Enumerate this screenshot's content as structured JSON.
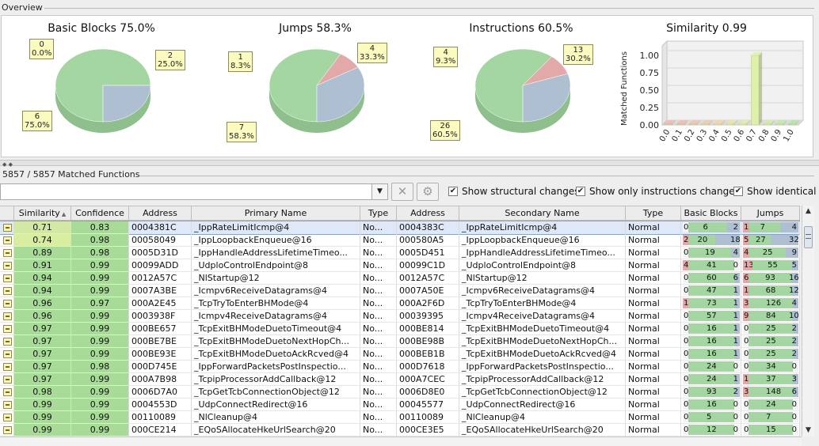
{
  "overview": {
    "title": "Overview",
    "pies": [
      {
        "title": "Basic Blocks 75.0%",
        "slices": [
          {
            "count": "6",
            "pct": "75.0%",
            "value": 75.0,
            "color": "#a3d6a0"
          },
          {
            "count": "0",
            "pct": "0.0%",
            "value": 0.0,
            "color": "#e3a8a8"
          },
          {
            "count": "2",
            "pct": "25.0%",
            "value": 25.0,
            "color": "#aebfd2"
          }
        ]
      },
      {
        "title": "Jumps 58.3%",
        "slices": [
          {
            "count": "7",
            "pct": "58.3%",
            "value": 58.3,
            "color": "#a3d6a0"
          },
          {
            "count": "1",
            "pct": "8.3%",
            "value": 8.3,
            "color": "#e3a8a8"
          },
          {
            "count": "4",
            "pct": "33.3%",
            "value": 33.3,
            "color": "#aebfd2"
          }
        ]
      },
      {
        "title": "Instructions 60.5%",
        "slices": [
          {
            "count": "26",
            "pct": "60.5%",
            "value": 60.5,
            "color": "#a3d6a0"
          },
          {
            "count": "4",
            "pct": "9.3%",
            "value": 9.3,
            "color": "#e3a8a8"
          },
          {
            "count": "13",
            "pct": "30.2%",
            "value": 30.2,
            "color": "#aebfd2"
          }
        ]
      }
    ]
  },
  "chart_data": {
    "type": "bar",
    "title": "Similarity 0.99",
    "ylabel": "Matched Functions",
    "xlabel": "",
    "categories": [
      "0.0",
      "0.1",
      "0.2",
      "0.3",
      "0.4",
      "0.5",
      "0.6",
      "0.7",
      "0.8",
      "0.9",
      "1.0"
    ],
    "values": [
      0,
      0,
      0,
      0,
      0,
      0,
      0,
      1.0,
      0,
      0,
      0
    ],
    "yticks": [
      "0.00",
      "0.25",
      "0.50",
      "0.75",
      "1.00"
    ],
    "ylim": [
      0,
      1.0
    ],
    "grid": true,
    "legend": "none",
    "colors": [
      "#f2b8b8",
      "#f2b8b8",
      "#f2c2b0",
      "#f2ccaa",
      "#f0d8a8",
      "#ece4a8",
      "#e6eca8",
      "#dff0a8",
      "#cfeea8",
      "#bfeaa8",
      "#b0e6a8"
    ]
  },
  "matched": {
    "label": "5857 / 5857 Matched Functions",
    "filter_value": "",
    "dropdown_icon": "dropdown-arrow-icon",
    "clear_icon": "clear-x-icon",
    "settings_icon": "gear-icon",
    "checks": [
      {
        "label": "Show structural changes",
        "checked": true
      },
      {
        "label": "Show only instructions changed",
        "checked": true
      },
      {
        "label": "Show identical",
        "checked": true
      }
    ]
  },
  "table": {
    "columns": [
      "",
      "Similarity",
      "Confidence",
      "Address",
      "Primary Name",
      "Type",
      "Address",
      "Secondary Name",
      "Type",
      "Basic Blocks",
      "Jumps"
    ],
    "sort_indicator": "▲",
    "rows": [
      {
        "sim": "0.71",
        "conf": "0.83",
        "addr1": "0004381C",
        "name1": "_IppRateLimitIcmp@4",
        "type1": "No...",
        "addr2": "0004383C",
        "name2": "_IppRateLimitIcmp@4",
        "type2": "Normal",
        "bb": [
          0,
          6,
          2
        ],
        "jm": [
          1,
          7,
          4
        ],
        "selected": true
      },
      {
        "sim": "0.74",
        "conf": "0.98",
        "addr1": "00058049",
        "name1": "_IppLoopbackEnqueue@16",
        "type1": "No...",
        "addr2": "000580A5",
        "name2": "_IppLoopbackEnqueue@16",
        "type2": "Normal",
        "bb": [
          2,
          20,
          18
        ],
        "jm": [
          5,
          27,
          32
        ]
      },
      {
        "sim": "0.89",
        "conf": "0.98",
        "addr1": "0005D31D",
        "name1": "_IppHandleAddressLifetimeTimeo...",
        "type1": "No...",
        "addr2": "0005D451",
        "name2": "_IppHandleAddressLifetimeTimeo...",
        "type2": "Normal",
        "bb": [
          0,
          19,
          4
        ],
        "jm": [
          4,
          25,
          9
        ]
      },
      {
        "sim": "0.91",
        "conf": "0.99",
        "addr1": "00099ADD",
        "name1": "_UdploControlEndpoint@8",
        "type1": "No...",
        "addr2": "00099C1D",
        "name2": "_UdploControlEndpoint@8",
        "type2": "Normal",
        "bb": [
          4,
          41,
          0
        ],
        "jm": [
          13,
          55,
          5
        ]
      },
      {
        "sim": "0.94",
        "conf": "0.99",
        "addr1": "0012A57C",
        "name1": "_NlStartup@12",
        "type1": "No...",
        "addr2": "0012A57C",
        "name2": "_NlStartup@12",
        "type2": "Normal",
        "bb": [
          0,
          60,
          6
        ],
        "jm": [
          6,
          93,
          16
        ]
      },
      {
        "sim": "0.94",
        "conf": "0.99",
        "addr1": "0007A3BE",
        "name1": "_Icmpv6ReceiveDatagrams@4",
        "type1": "No...",
        "addr2": "0007A50E",
        "name2": "_Icmpv6ReceiveDatagrams@4",
        "type2": "Normal",
        "bb": [
          0,
          47,
          1
        ],
        "jm": [
          11,
          68,
          12
        ]
      },
      {
        "sim": "0.96",
        "conf": "0.97",
        "addr1": "000A2E45",
        "name1": "_TcpTryToEnterBHMode@4",
        "type1": "No...",
        "addr2": "000A2F6D",
        "name2": "_TcpTryToEnterBHMode@4",
        "type2": "Normal",
        "bb": [
          1,
          73,
          1
        ],
        "jm": [
          3,
          126,
          4
        ]
      },
      {
        "sim": "0.96",
        "conf": "0.99",
        "addr1": "0003938F",
        "name1": "_Icmpv4ReceiveDatagrams@4",
        "type1": "No...",
        "addr2": "00039395",
        "name2": "_Icmpv4ReceiveDatagrams@4",
        "type2": "Normal",
        "bb": [
          0,
          57,
          1
        ],
        "jm": [
          9,
          84,
          10
        ]
      },
      {
        "sim": "0.97",
        "conf": "0.99",
        "addr1": "000BE657",
        "name1": "_TcpExitBHModeDuetoTimeout@4",
        "type1": "No...",
        "addr2": "000BE814",
        "name2": "_TcpExitBHModeDuetoTimeout@4",
        "type2": "Normal",
        "bb": [
          0,
          16,
          1
        ],
        "jm": [
          0,
          25,
          2
        ]
      },
      {
        "sim": "0.97",
        "conf": "0.99",
        "addr1": "000BE7BE",
        "name1": "_TcpExitBHModeDuetoNextHopCh...",
        "type1": "No...",
        "addr2": "000BE98B",
        "name2": "_TcpExitBHModeDuetoNextHopCh...",
        "type2": "Normal",
        "bb": [
          0,
          16,
          1
        ],
        "jm": [
          0,
          25,
          2
        ]
      },
      {
        "sim": "0.97",
        "conf": "0.99",
        "addr1": "000BE93E",
        "name1": "_TcpExitBHModeDuetoAckRcved@4",
        "type1": "No...",
        "addr2": "000BEB1B",
        "name2": "_TcpExitBHModeDuetoAckRcved@4",
        "type2": "Normal",
        "bb": [
          0,
          16,
          1
        ],
        "jm": [
          0,
          25,
          2
        ]
      },
      {
        "sim": "0.97",
        "conf": "0.98",
        "addr1": "000D745E",
        "name1": "_IppForwardPacketsPostInspectio...",
        "type1": "No...",
        "addr2": "000D7618",
        "name2": "_IppForwardPacketsPostInspectio...",
        "type2": "Normal",
        "bb": [
          0,
          24,
          0
        ],
        "jm": [
          0,
          34,
          0
        ]
      },
      {
        "sim": "0.97",
        "conf": "0.99",
        "addr1": "000A7B98",
        "name1": "_TcpipProcessorAddCallback@12",
        "type1": "No...",
        "addr2": "000A7CEC",
        "name2": "_TcpipProcessorAddCallback@12",
        "type2": "Normal",
        "bb": [
          0,
          24,
          1
        ],
        "jm": [
          1,
          37,
          3
        ]
      },
      {
        "sim": "0.98",
        "conf": "0.99",
        "addr1": "0006D7A0",
        "name1": "_TcpGetTcbConnectionObject@12",
        "type1": "No...",
        "addr2": "0006D8E0",
        "name2": "_TcpGetTcbConnectionObject@12",
        "type2": "Normal",
        "bb": [
          0,
          93,
          2
        ],
        "jm": [
          3,
          148,
          6
        ]
      },
      {
        "sim": "0.99",
        "conf": "0.99",
        "addr1": "0004553D",
        "name1": "_UdpConnectRedirect@16",
        "type1": "No...",
        "addr2": "00045577",
        "name2": "_UdpConnectRedirect@16",
        "type2": "Normal",
        "bb": [
          0,
          16,
          0
        ],
        "jm": [
          0,
          24,
          0
        ]
      },
      {
        "sim": "0.99",
        "conf": "0.99",
        "addr1": "00110089",
        "name1": "_NlCleanup@4",
        "type1": "No...",
        "addr2": "00110089",
        "name2": "_NlCleanup@4",
        "type2": "Normal",
        "bb": [
          0,
          5,
          0
        ],
        "jm": [
          0,
          7,
          0
        ]
      },
      {
        "sim": "0.99",
        "conf": "0.99",
        "addr1": "000CE214",
        "name1": "_EQoSAllocateHkeUrlSearch@20",
        "type1": "No...",
        "addr2": "000CE3E5",
        "name2": "_EQoSAllocateHkeUrlSearch@20",
        "type2": "Normal",
        "bb": [
          0,
          12,
          0
        ],
        "jm": [
          0,
          15,
          0
        ]
      }
    ]
  },
  "colors": {
    "matched_green": "#a3d6a0",
    "changed_red": "#e3a8a8",
    "unmatched_blue": "#aebfd2",
    "callout_yellow": "#fbfbc0",
    "selected_row": "#dfe8f6"
  }
}
